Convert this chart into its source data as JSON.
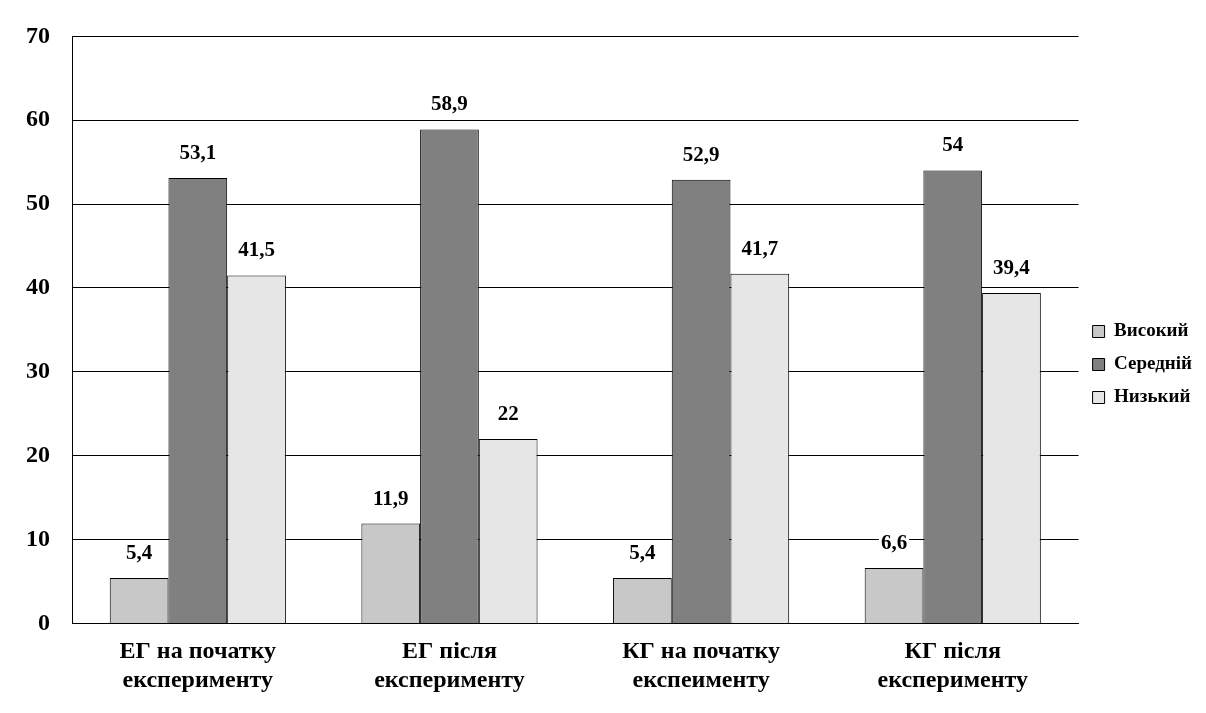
{
  "chart_data": {
    "type": "bar",
    "categories": [
      "ЕГ на початку експерименту",
      "ЕГ після експерименту",
      "КГ на початку експеименту",
      "КГ після експерименту"
    ],
    "series": [
      {
        "name": "Високий",
        "color": "#c8c8c8",
        "values": [
          5.4,
          11.9,
          5.4,
          6.6
        ],
        "value_labels": [
          "5,4",
          "11,9",
          "5,4",
          "6,6"
        ]
      },
      {
        "name": "Середній",
        "color": "#808080",
        "values": [
          53.1,
          58.9,
          52.9,
          54
        ],
        "value_labels": [
          "53,1",
          "58,9",
          "52,9",
          "54"
        ]
      },
      {
        "name": "Низький",
        "color": "#e6e6e6",
        "values": [
          41.5,
          22,
          41.7,
          39.4
        ],
        "value_labels": [
          "41,5",
          "22",
          "41,7",
          "39,4"
        ]
      }
    ],
    "ylim": [
      0,
      70
    ],
    "yticks": [
      0,
      10,
      20,
      30,
      40,
      50,
      60,
      70
    ],
    "grid": "y",
    "legend": "right"
  }
}
